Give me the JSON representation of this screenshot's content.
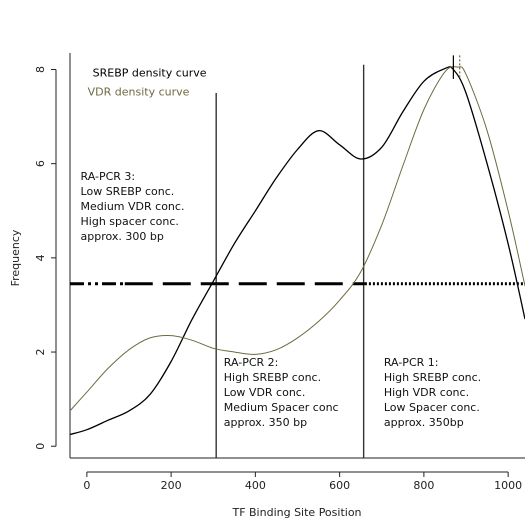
{
  "chart_data": {
    "type": "line",
    "xlabel": "TF Binding Site Position",
    "ylabel": "Frequency",
    "xlim": [
      -40,
      1040
    ],
    "ylim": [
      -0.25,
      8.35
    ],
    "xticks": [
      0,
      200,
      400,
      600,
      800,
      1000
    ],
    "yticks": [
      0,
      2,
      4,
      6,
      8
    ],
    "grid": false,
    "series": [
      {
        "name": "SREBP density curve",
        "color": "#000000",
        "x": [
          -40,
          0,
          50,
          100,
          150,
          200,
          250,
          300,
          350,
          400,
          450,
          500,
          550,
          600,
          650,
          700,
          750,
          800,
          850,
          870,
          900,
          950,
          1000,
          1040
        ],
        "y": [
          0.25,
          0.35,
          0.55,
          0.75,
          1.1,
          1.8,
          2.7,
          3.5,
          4.3,
          5.0,
          5.7,
          6.3,
          6.7,
          6.4,
          6.1,
          6.35,
          7.1,
          7.75,
          8.02,
          8.0,
          7.5,
          6.0,
          4.3,
          2.7
        ],
        "label_y": 7.85
      },
      {
        "name": "VDR density curve",
        "color": "#6e6a40",
        "x": [
          -40,
          0,
          50,
          100,
          150,
          200,
          250,
          300,
          350,
          400,
          450,
          500,
          550,
          600,
          650,
          700,
          750,
          800,
          850,
          880,
          900,
          950,
          1000,
          1040
        ],
        "y": [
          0.75,
          1.15,
          1.65,
          2.05,
          2.3,
          2.35,
          2.25,
          2.08,
          2.0,
          1.95,
          2.05,
          2.3,
          2.65,
          3.1,
          3.7,
          4.7,
          5.95,
          7.15,
          7.95,
          8.05,
          7.9,
          6.7,
          5.0,
          3.4
        ],
        "label_y": 7.45
      }
    ],
    "thresholds": [
      {
        "style": "dash-dot-dot",
        "y": 3.45,
        "x": [
          -40,
          90
        ]
      },
      {
        "style": "long-dash",
        "y": 3.45,
        "x": [
          90,
          660
        ]
      },
      {
        "style": "dotted",
        "y": 3.45,
        "x": [
          660,
          1040
        ]
      }
    ],
    "vlines": [
      {
        "x": 307,
        "ytop": 7.5
      },
      {
        "x": 657,
        "ytop": 8.1
      }
    ],
    "peak_marks": [
      {
        "x": 870,
        "color": "#000000"
      },
      {
        "x": 885,
        "color": "#6e6a40"
      }
    ],
    "annotations": [
      {
        "lines": [
          "RA-PCR 3:",
          "Low SREBP conc.",
          "Medium VDR conc.",
          "High spacer conc.",
          "approx. 300 bp"
        ],
        "x": -15,
        "y": 5.65
      },
      {
        "lines": [
          "RA-PCR 2:",
          "High SREBP conc.",
          "Low VDR conc.",
          "Medium Spacer conc",
          "approx. 350 bp"
        ],
        "x": 325,
        "y": 1.7
      },
      {
        "lines": [
          "RA-PCR 1:",
          "High SREBP conc.",
          "High VDR conc.",
          "Low Spacer conc.",
          "approx. 350bp"
        ],
        "x": 705,
        "y": 1.7
      }
    ]
  }
}
